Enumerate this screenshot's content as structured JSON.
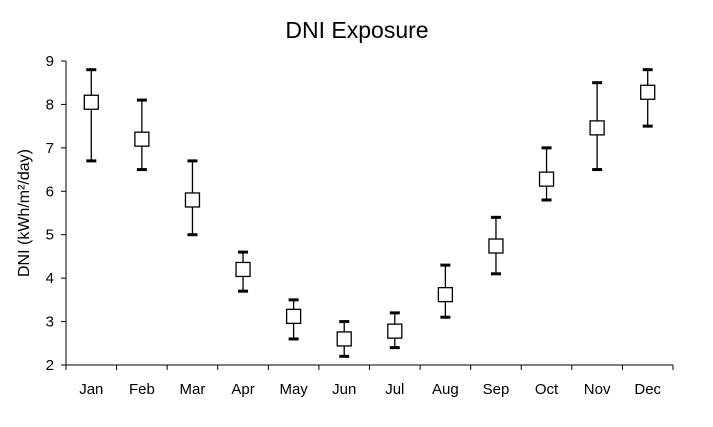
{
  "chart_data": {
    "type": "scatter",
    "title": "DNI Exposure",
    "xlabel": "",
    "ylabel": "DNI (kWh/m²/day)",
    "ylim": [
      2,
      9
    ],
    "yticks": [
      2,
      3,
      4,
      5,
      6,
      7,
      8,
      9
    ],
    "grid": false,
    "marker": "open-square",
    "categories": [
      "Jan",
      "Feb",
      "Mar",
      "Apr",
      "May",
      "Jun",
      "Jul",
      "Aug",
      "Sep",
      "Oct",
      "Nov",
      "Dec"
    ],
    "values": [
      8.05,
      7.2,
      5.8,
      4.2,
      3.12,
      2.6,
      2.78,
      3.62,
      4.74,
      6.28,
      7.46,
      8.28
    ],
    "error_low": [
      6.7,
      6.5,
      5.0,
      3.7,
      2.6,
      2.2,
      2.4,
      3.1,
      4.1,
      5.8,
      6.5,
      7.5
    ],
    "error_high": [
      8.8,
      8.1,
      6.7,
      4.6,
      3.5,
      3.0,
      3.2,
      4.3,
      5.4,
      7.0,
      8.5,
      8.8
    ],
    "colors": {
      "line": "#000000",
      "marker_fill": "#ffffff"
    }
  }
}
